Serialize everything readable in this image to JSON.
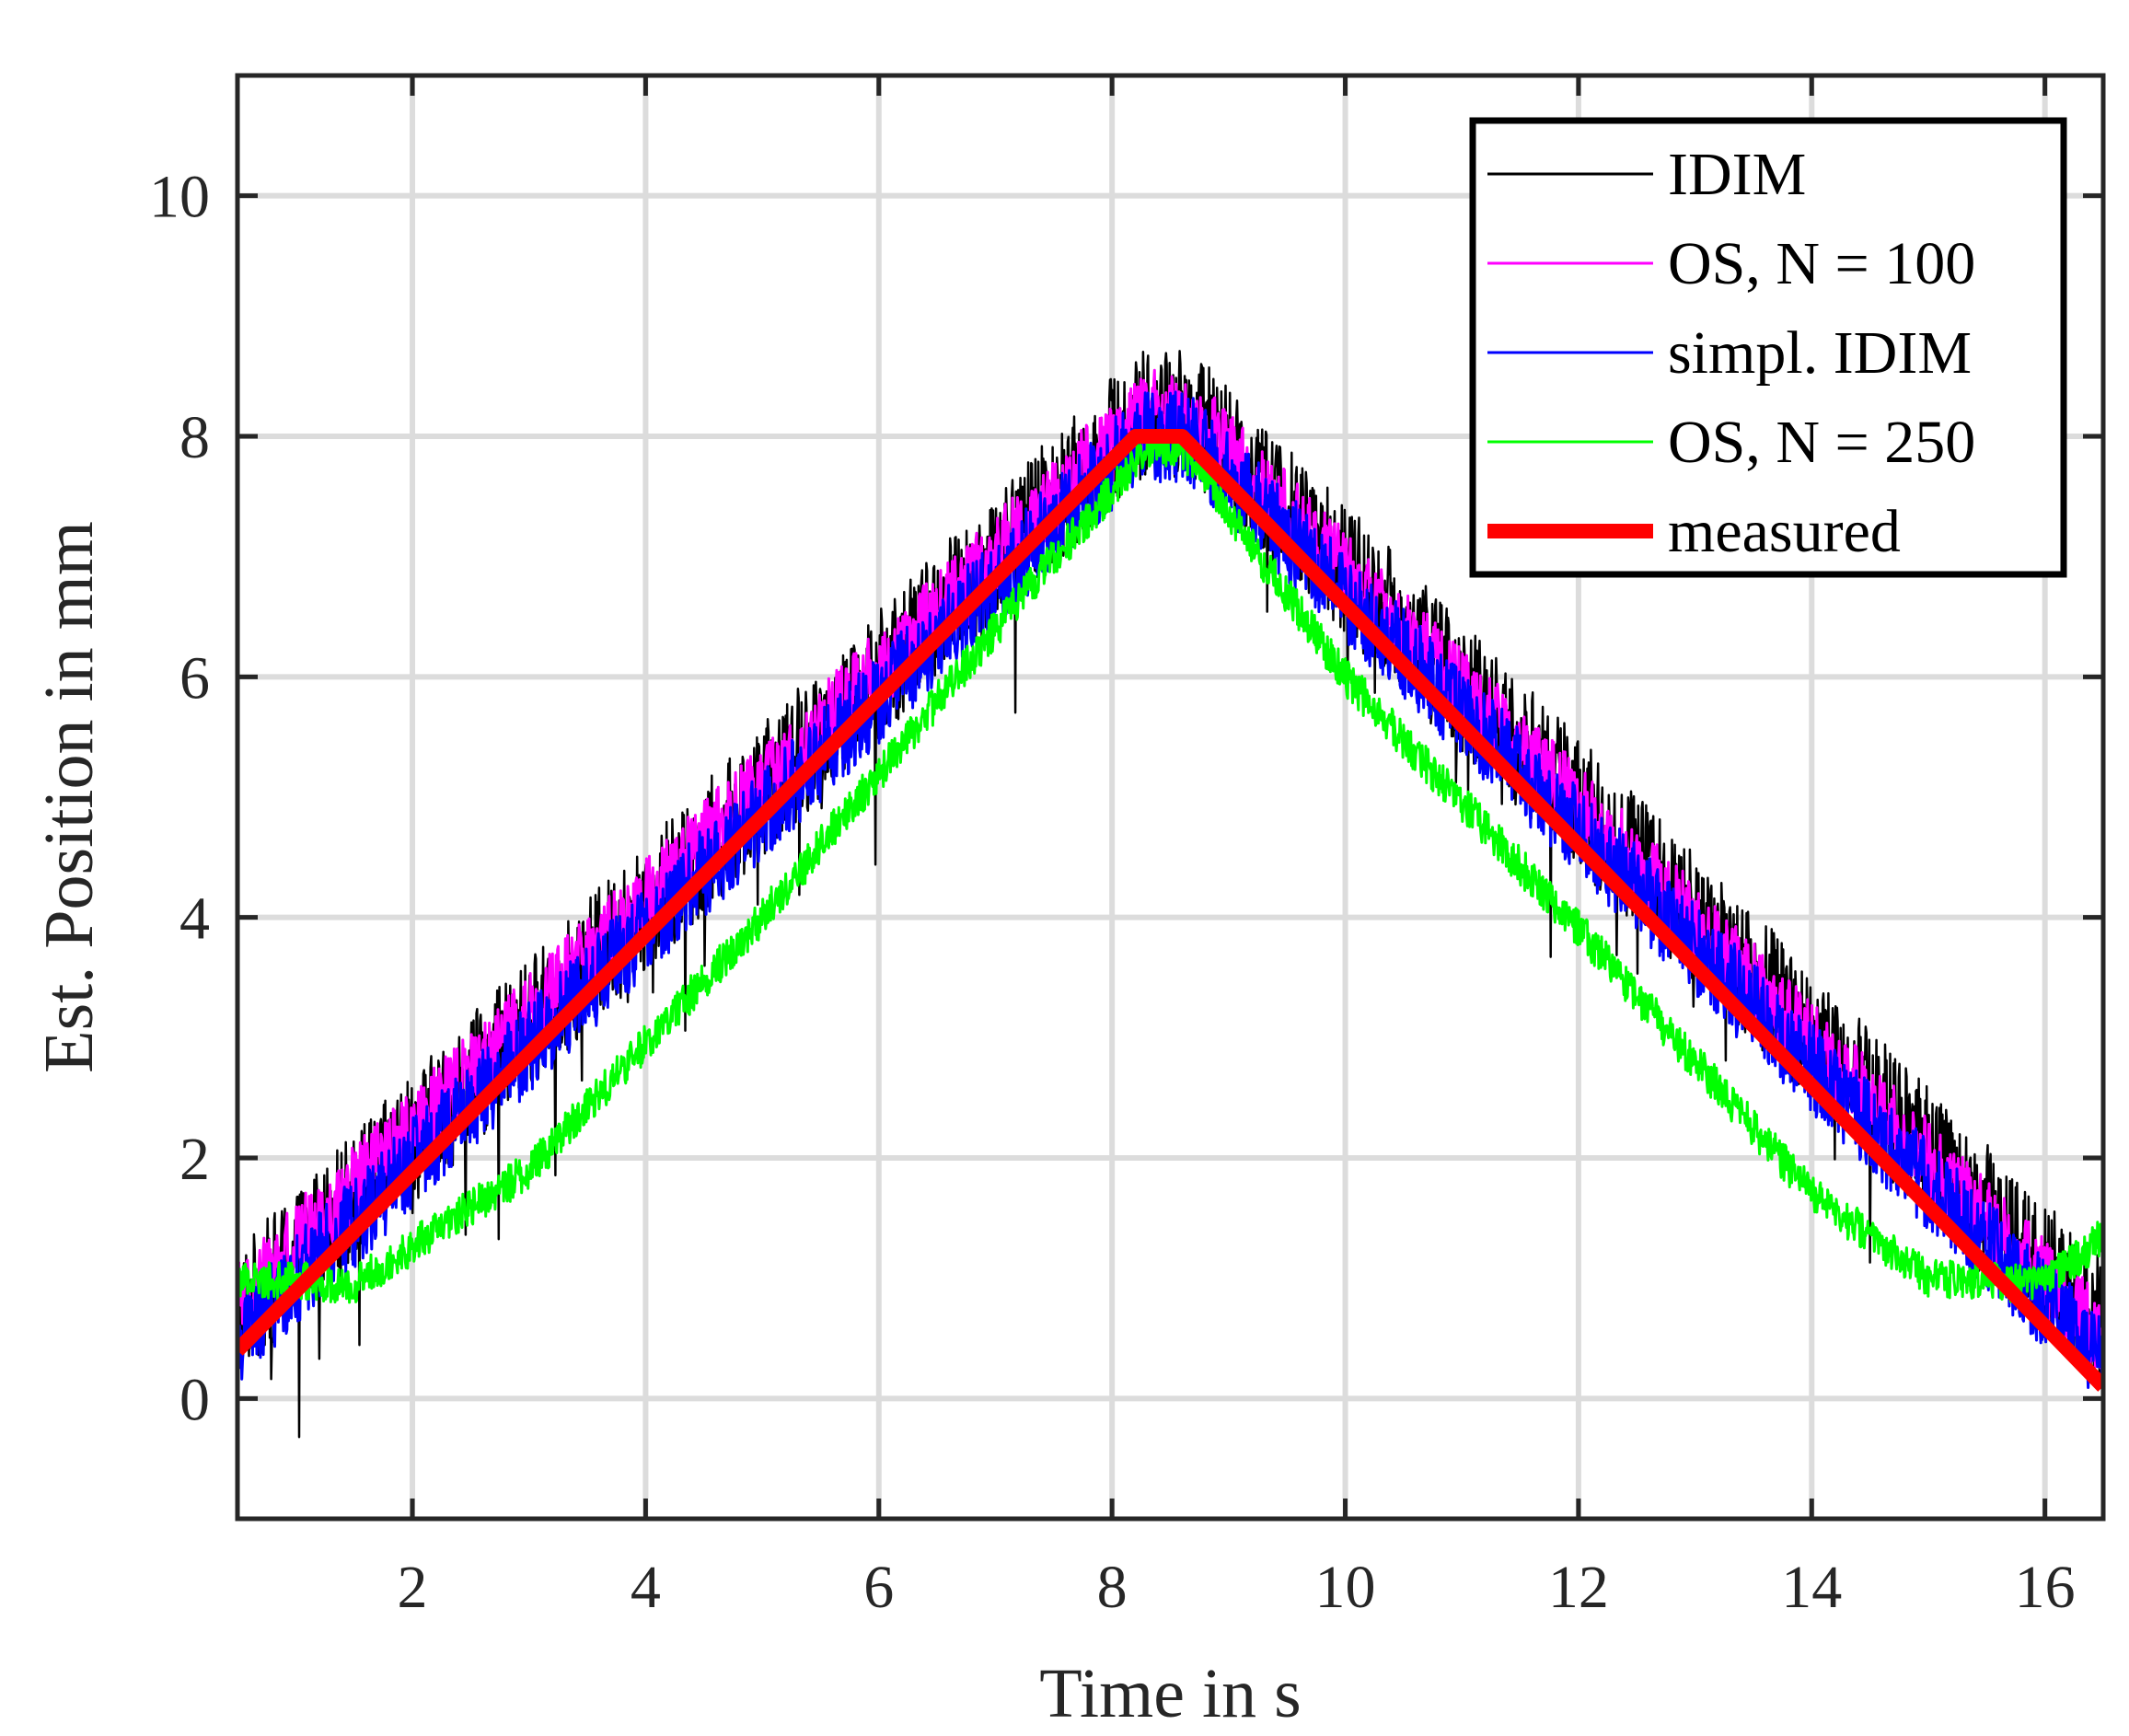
{
  "chart_data": {
    "type": "line",
    "title": "",
    "xlabel": "Time in s",
    "ylabel": "Est. Position in mm",
    "xlim": [
      0.5,
      16.5
    ],
    "ylim": [
      -1,
      11
    ],
    "xticks": [
      2,
      4,
      6,
      8,
      10,
      12,
      14,
      16
    ],
    "yticks": [
      0,
      2,
      4,
      6,
      8,
      10
    ],
    "xtick_labels": [
      "2",
      "4",
      "6",
      "8",
      "10",
      "12",
      "14",
      "16"
    ],
    "ytick_labels": [
      "0",
      "2",
      "4",
      "6",
      "8",
      "10"
    ],
    "grid": true,
    "legend_position": "top-right",
    "series": [
      {
        "name": "IDIM",
        "color": "#000000",
        "style": "noisy",
        "x": [
          0.5,
          8.25,
          8.65,
          16.5
        ],
        "y": [
          0.7,
          8.2,
          8.2,
          0.6
        ],
        "noise_amplitude": 0.55
      },
      {
        "name": "OS, N = 100",
        "color": "#ff00ff",
        "style": "noisy",
        "x": [
          0.5,
          8.25,
          8.65,
          16.5
        ],
        "y": [
          0.8,
          8.2,
          8.2,
          0.5
        ],
        "noise_amplitude": 0.35
      },
      {
        "name": "simpl. IDIM",
        "color": "#0000ff",
        "style": "noisy",
        "x": [
          0.5,
          8.25,
          8.65,
          16.5
        ],
        "y": [
          0.5,
          8.0,
          8.0,
          0.3
        ],
        "noise_amplitude": 0.38
      },
      {
        "name": "OS, N = 250",
        "color": "#00ff00",
        "style": "noisy",
        "x": [
          0.5,
          1.5,
          3,
          5,
          7,
          8.3,
          8.6,
          10,
          12,
          14,
          15,
          16,
          16.5
        ],
        "y": [
          1.0,
          0.95,
          1.9,
          4.0,
          6.4,
          7.9,
          7.9,
          6.0,
          3.9,
          1.7,
          1.0,
          0.95,
          1.35
        ],
        "noise_amplitude": 0.16
      },
      {
        "name": "measured",
        "color": "#ff0000",
        "style": "thick",
        "x": [
          0.5,
          8.2,
          8.6,
          16.5
        ],
        "y": [
          0.4,
          8.0,
          8.0,
          0.1
        ]
      }
    ]
  }
}
